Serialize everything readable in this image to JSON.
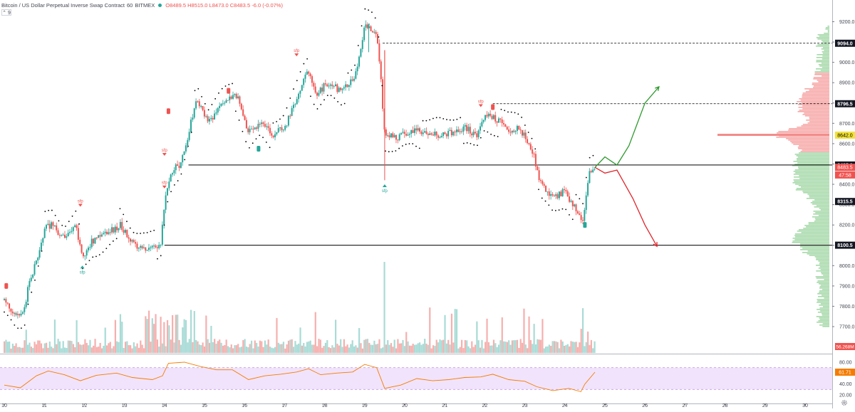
{
  "header": {
    "symbol": "Bitcoin / US Dollar Perpetual Inverse Swap Contract",
    "interval": "60",
    "exchange": "BITMEX",
    "ohlc": "O8489.5  H8515.0  L8473.0  C8483.5  -6.0 (-0.07%)"
  },
  "indicator_toggle": "⌃ 9",
  "colors": {
    "up": "#26a69a",
    "down": "#ef5350",
    "sar": "#000000",
    "forecast_up": "#2e9a2e",
    "forecast_down": "#e0252b",
    "rsi_line": "#f57c00",
    "rsi_band": "#f1e3fb"
  },
  "chart_data": {
    "type": "candlestick",
    "x_ticks": [
      "10",
      "11",
      "12",
      "13",
      "14",
      "15",
      "16",
      "17",
      "18",
      "19",
      "20",
      "21",
      "22",
      "23",
      "24",
      "25",
      "26",
      "27",
      "28",
      "29",
      "30"
    ],
    "price_ticks": [
      "9200.0",
      "9100.0",
      "9000.0",
      "8900.0",
      "8800.0",
      "8700.0",
      "8600.0",
      "8500.0",
      "8400.0",
      "8300.0",
      "8200.0",
      "8100.0",
      "8000.0",
      "7900.0",
      "7800.0",
      "7700.0"
    ],
    "y_range": [
      7640,
      9280
    ],
    "price_path": [
      [
        10.0,
        7830
      ],
      [
        10.3,
        7760
      ],
      [
        10.5,
        7780
      ],
      [
        10.6,
        7900
      ],
      [
        10.8,
        8020
      ],
      [
        11.0,
        8180
      ],
      [
        11.2,
        8200
      ],
      [
        11.5,
        8130
      ],
      [
        11.8,
        8190
      ],
      [
        11.95,
        8040
      ],
      [
        12.2,
        8120
      ],
      [
        12.5,
        8150
      ],
      [
        12.9,
        8200
      ],
      [
        13.2,
        8110
      ],
      [
        13.6,
        8080
      ],
      [
        13.9,
        8100
      ],
      [
        14.05,
        8380
      ],
      [
        14.2,
        8470
      ],
      [
        14.4,
        8500
      ],
      [
        14.6,
        8650
      ],
      [
        14.8,
        8820
      ],
      [
        15.1,
        8710
      ],
      [
        15.4,
        8780
      ],
      [
        15.8,
        8840
      ],
      [
        16.1,
        8650
      ],
      [
        16.4,
        8700
      ],
      [
        16.7,
        8640
      ],
      [
        17.0,
        8680
      ],
      [
        17.3,
        8820
      ],
      [
        17.55,
        8960
      ],
      [
        17.8,
        8850
      ],
      [
        18.1,
        8900
      ],
      [
        18.4,
        8860
      ],
      [
        18.75,
        8920
      ],
      [
        19.0,
        9180
      ],
      [
        19.25,
        9160
      ],
      [
        19.35,
        9060
      ],
      [
        19.5,
        8650
      ],
      [
        19.8,
        8630
      ],
      [
        20.2,
        8670
      ],
      [
        20.6,
        8650
      ],
      [
        21.0,
        8640
      ],
      [
        21.5,
        8680
      ],
      [
        21.8,
        8640
      ],
      [
        22.0,
        8740
      ],
      [
        22.3,
        8720
      ],
      [
        22.6,
        8670
      ],
      [
        22.9,
        8670
      ],
      [
        23.2,
        8560
      ],
      [
        23.4,
        8400
      ],
      [
        23.7,
        8330
      ],
      [
        24.0,
        8370
      ],
      [
        24.2,
        8300
      ],
      [
        24.45,
        8220
      ],
      [
        24.6,
        8450
      ],
      [
        24.75,
        8483.5
      ]
    ],
    "up_candle_days": [
      10.1,
      10.6,
      10.9,
      11.3,
      11.6,
      12.1,
      12.6,
      12.8,
      14.0,
      14.1,
      14.3,
      14.7,
      15.3,
      15.9,
      16.5,
      17.1,
      17.5,
      18.3,
      18.9,
      19.1,
      20.4,
      21.1,
      21.9,
      22.1,
      22.9,
      24.0,
      24.6
    ],
    "horizontal_levels": [
      {
        "price": 9094.0,
        "label": "9094.0",
        "style": "dashed",
        "from_day": 19.45
      },
      {
        "price": 8796.5,
        "label": "8796.5",
        "style": "dashed",
        "from_day": 22.2
      },
      {
        "price": 8495.0,
        "label": "8495.0",
        "style": "solid",
        "from_day": 14.6
      },
      {
        "price": 8315.5,
        "label": "8315.5",
        "style": "none",
        "from_day": 24.8
      },
      {
        "price": 8100.5,
        "label": "8100.5",
        "style": "solid",
        "from_day": 14.0
      }
    ],
    "axis_badges": [
      {
        "price": 8642.0,
        "label": "8642.0",
        "color": "#f2e23a",
        "text_color": "#000000"
      },
      {
        "price": 8483.5,
        "label": "8483.5",
        "color": "#ef5350",
        "text_color": "#ffffff"
      },
      {
        "price": 8446.0,
        "label": "47:58",
        "color": "#ef5350",
        "text_color": "#ffffff"
      }
    ],
    "sfp_markers": [
      {
        "day": 11.9,
        "price": 8290,
        "dir": "down",
        "label": "sfp"
      },
      {
        "day": 14.0,
        "price": 8540,
        "dir": "down",
        "label": "sfp"
      },
      {
        "day": 14.0,
        "price": 8380,
        "dir": "down",
        "label": "sfp"
      },
      {
        "day": 17.3,
        "price": 9030,
        "dir": "down",
        "label": "sfp"
      },
      {
        "day": 21.9,
        "price": 8780,
        "dir": "down",
        "label": "sfp"
      },
      {
        "day": 11.95,
        "price": 8000,
        "dir": "up",
        "label": "sfp"
      },
      {
        "day": 19.5,
        "price": 8400,
        "dir": "up",
        "label": "sfp"
      }
    ],
    "badge_markers": [
      {
        "day": 10.05,
        "price": 7900,
        "color": "#ef5350"
      },
      {
        "day": 14.1,
        "price": 8760,
        "color": "#ef5350"
      },
      {
        "day": 15.6,
        "price": 8860,
        "color": "#ef5350"
      },
      {
        "day": 16.35,
        "price": 8575,
        "color": "#26a69a"
      },
      {
        "day": 22.2,
        "price": 8780,
        "color": "#ef5350"
      },
      {
        "day": 24.5,
        "price": 8200,
        "color": "#26a69a"
      }
    ],
    "forecast": {
      "bull": [
        [
          24.75,
          8483.5
        ],
        [
          25.0,
          8535
        ],
        [
          25.3,
          8495
        ],
        [
          25.6,
          8590
        ],
        [
          26.0,
          8800
        ],
        [
          26.35,
          8880
        ]
      ],
      "bear": [
        [
          24.75,
          8483.5
        ],
        [
          25.0,
          8455
        ],
        [
          25.3,
          8470
        ],
        [
          25.7,
          8330
        ],
        [
          26.0,
          8200
        ],
        [
          26.3,
          8095
        ]
      ]
    },
    "volume_label": "56.268M",
    "rsi": {
      "ticks": [
        "80.00",
        "60.00",
        "40.00",
        "20.00"
      ],
      "upper": 70,
      "lower": 30,
      "value": 61.71,
      "value_label": "61.71",
      "path": [
        [
          10.0,
          38
        ],
        [
          10.4,
          33
        ],
        [
          10.8,
          55
        ],
        [
          11.1,
          64
        ],
        [
          11.5,
          57
        ],
        [
          11.9,
          46
        ],
        [
          12.3,
          56
        ],
        [
          12.8,
          60
        ],
        [
          13.2,
          52
        ],
        [
          13.7,
          48
        ],
        [
          13.95,
          55
        ],
        [
          14.1,
          78
        ],
        [
          14.5,
          80
        ],
        [
          14.9,
          72
        ],
        [
          15.3,
          66
        ],
        [
          15.7,
          66
        ],
        [
          16.1,
          48
        ],
        [
          16.5,
          55
        ],
        [
          16.9,
          58
        ],
        [
          17.3,
          62
        ],
        [
          17.6,
          68
        ],
        [
          17.9,
          57
        ],
        [
          18.3,
          60
        ],
        [
          18.7,
          62
        ],
        [
          19.0,
          76
        ],
        [
          19.3,
          70
        ],
        [
          19.5,
          32
        ],
        [
          19.9,
          38
        ],
        [
          20.3,
          50
        ],
        [
          20.7,
          46
        ],
        [
          21.1,
          48
        ],
        [
          21.5,
          52
        ],
        [
          21.9,
          53
        ],
        [
          22.2,
          58
        ],
        [
          22.6,
          48
        ],
        [
          23.0,
          45
        ],
        [
          23.3,
          35
        ],
        [
          23.7,
          28
        ],
        [
          24.1,
          32
        ],
        [
          24.4,
          26
        ],
        [
          24.5,
          40
        ],
        [
          24.75,
          61.71
        ]
      ]
    }
  }
}
